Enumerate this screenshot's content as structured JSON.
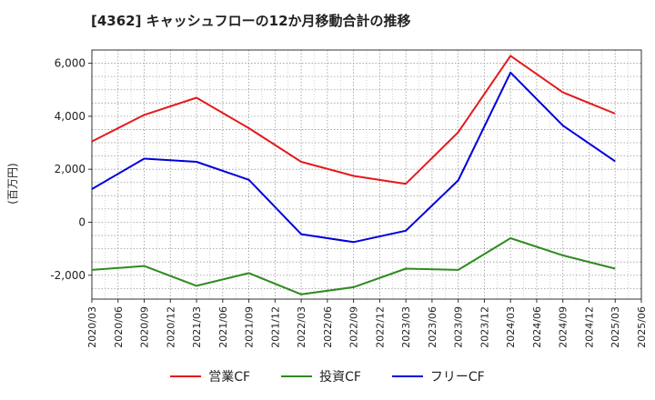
{
  "chart_data": {
    "type": "line",
    "title": "[4362]  キャッシュフローの12か月移動合計の推移",
    "xlabel": "",
    "ylabel": "(百万円)",
    "ylim": [
      -2900,
      6500
    ],
    "yticks": [
      -2000,
      0,
      2000,
      4000,
      6000
    ],
    "ytick_labels": [
      "-2,000",
      "0",
      "2,000",
      "4,000",
      "6,000"
    ],
    "grid": true,
    "legend_position": "bottom",
    "categories": [
      "2020/03",
      "2020/06",
      "2020/09",
      "2020/12",
      "2021/03",
      "2021/06",
      "2021/09",
      "2021/12",
      "2022/03",
      "2022/06",
      "2022/09",
      "2022/12",
      "2023/03",
      "2023/06",
      "2023/09",
      "2023/12",
      "2024/03",
      "2024/06",
      "2024/09",
      "2024/12",
      "2025/03",
      "2025/06"
    ],
    "series": [
      {
        "name": "営業CF",
        "color": "#e31a1c",
        "values": [
          3050,
          null,
          4050,
          null,
          4700,
          null,
          3550,
          null,
          2280,
          null,
          1750,
          null,
          1450,
          null,
          3400,
          null,
          6280,
          null,
          4900,
          null,
          4100,
          null
        ]
      },
      {
        "name": "投資CF",
        "color": "#2e8b1e",
        "values": [
          -1800,
          null,
          -1650,
          null,
          -2400,
          null,
          -1920,
          null,
          -2720,
          null,
          -2450,
          null,
          -1750,
          null,
          -1800,
          null,
          -600,
          null,
          -1250,
          null,
          -1750,
          null
        ]
      },
      {
        "name": "フリーCF",
        "color": "#0000dd",
        "values": [
          1250,
          null,
          2400,
          null,
          2280,
          null,
          1600,
          null,
          -450,
          null,
          -750,
          null,
          -320,
          null,
          1580,
          null,
          5650,
          null,
          3650,
          null,
          2300,
          null
        ]
      }
    ]
  }
}
